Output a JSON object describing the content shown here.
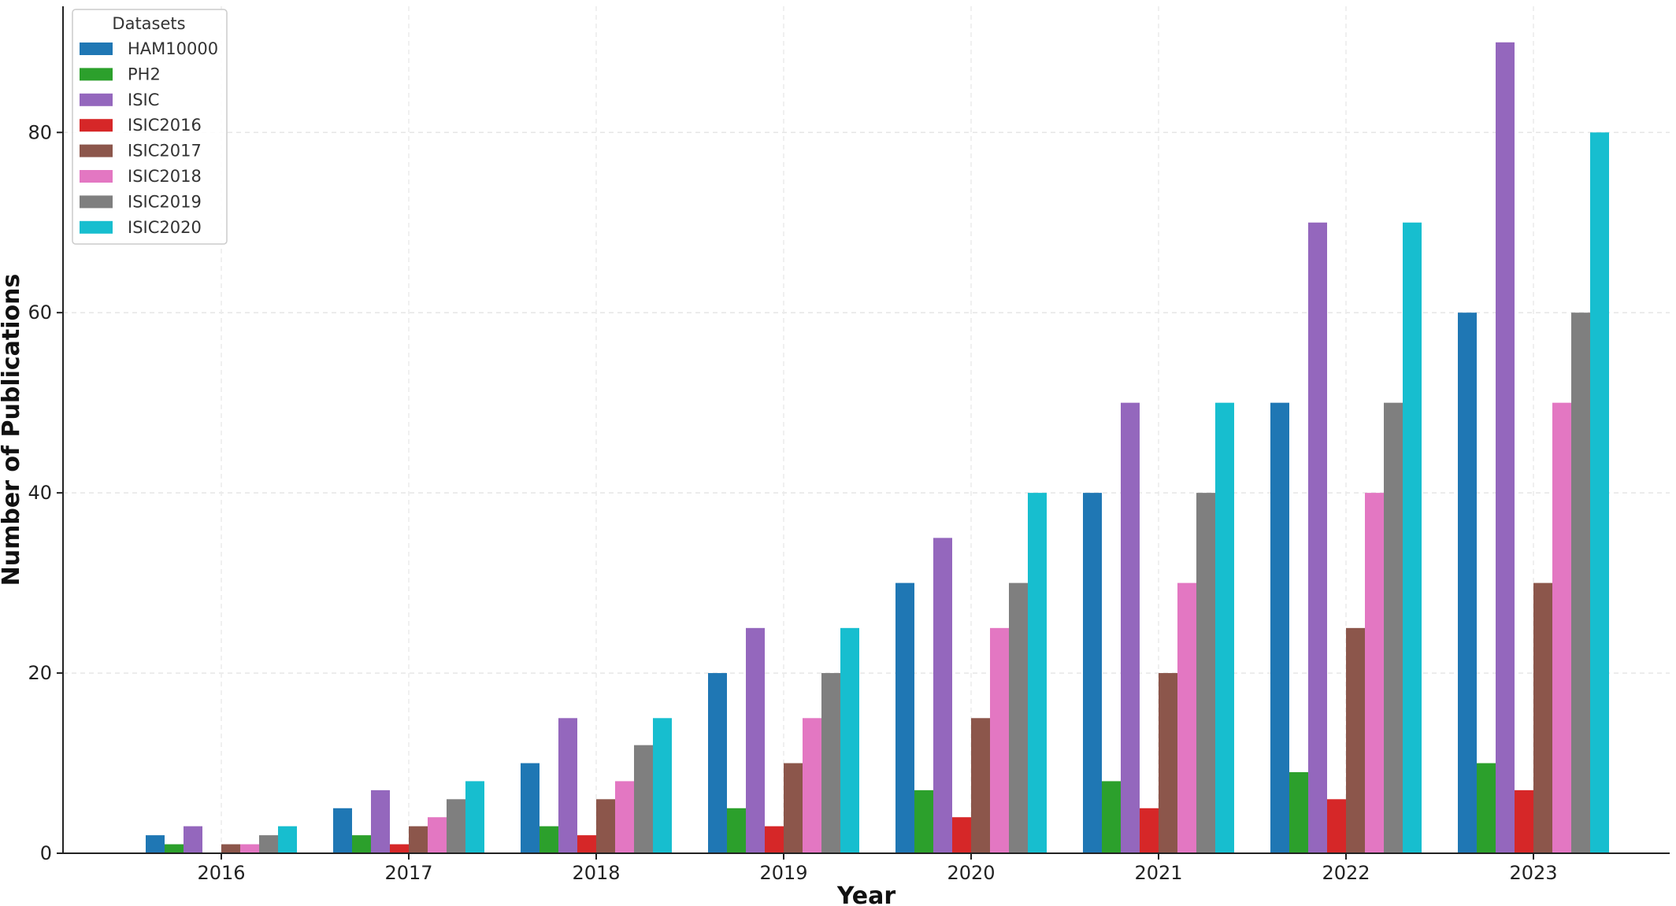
{
  "chart_data": {
    "type": "bar",
    "xlabel": "Year",
    "ylabel": "Number of Publications",
    "categories": [
      "2016",
      "2017",
      "2018",
      "2019",
      "2020",
      "2021",
      "2022",
      "2023"
    ],
    "ylim": [
      0,
      94
    ],
    "yticks": [
      0,
      20,
      40,
      60,
      80
    ],
    "grid": true,
    "legend": {
      "title": "Datasets",
      "placement": "top-left"
    },
    "series": [
      {
        "name": "HAM10000",
        "color": "#1f77b4",
        "values": [
          2,
          5,
          10,
          20,
          30,
          40,
          50,
          60
        ]
      },
      {
        "name": "PH2",
        "color": "#2ca02c",
        "values": [
          1,
          2,
          3,
          5,
          7,
          8,
          9,
          10
        ]
      },
      {
        "name": "ISIC",
        "color": "#9467bd",
        "values": [
          3,
          7,
          15,
          25,
          35,
          50,
          70,
          90
        ]
      },
      {
        "name": "ISIC2016",
        "color": "#d62728",
        "values": [
          0,
          1,
          2,
          3,
          4,
          5,
          6,
          7
        ]
      },
      {
        "name": "ISIC2017",
        "color": "#8c564b",
        "values": [
          1,
          3,
          6,
          10,
          15,
          20,
          25,
          30
        ]
      },
      {
        "name": "ISIC2018",
        "color": "#e377c2",
        "values": [
          1,
          4,
          8,
          15,
          25,
          30,
          40,
          50
        ]
      },
      {
        "name": "ISIC2019",
        "color": "#7f7f7f",
        "values": [
          2,
          6,
          12,
          20,
          30,
          40,
          50,
          60
        ]
      },
      {
        "name": "ISIC2020",
        "color": "#17becf",
        "values": [
          3,
          8,
          15,
          25,
          40,
          50,
          70,
          80
        ]
      }
    ]
  }
}
